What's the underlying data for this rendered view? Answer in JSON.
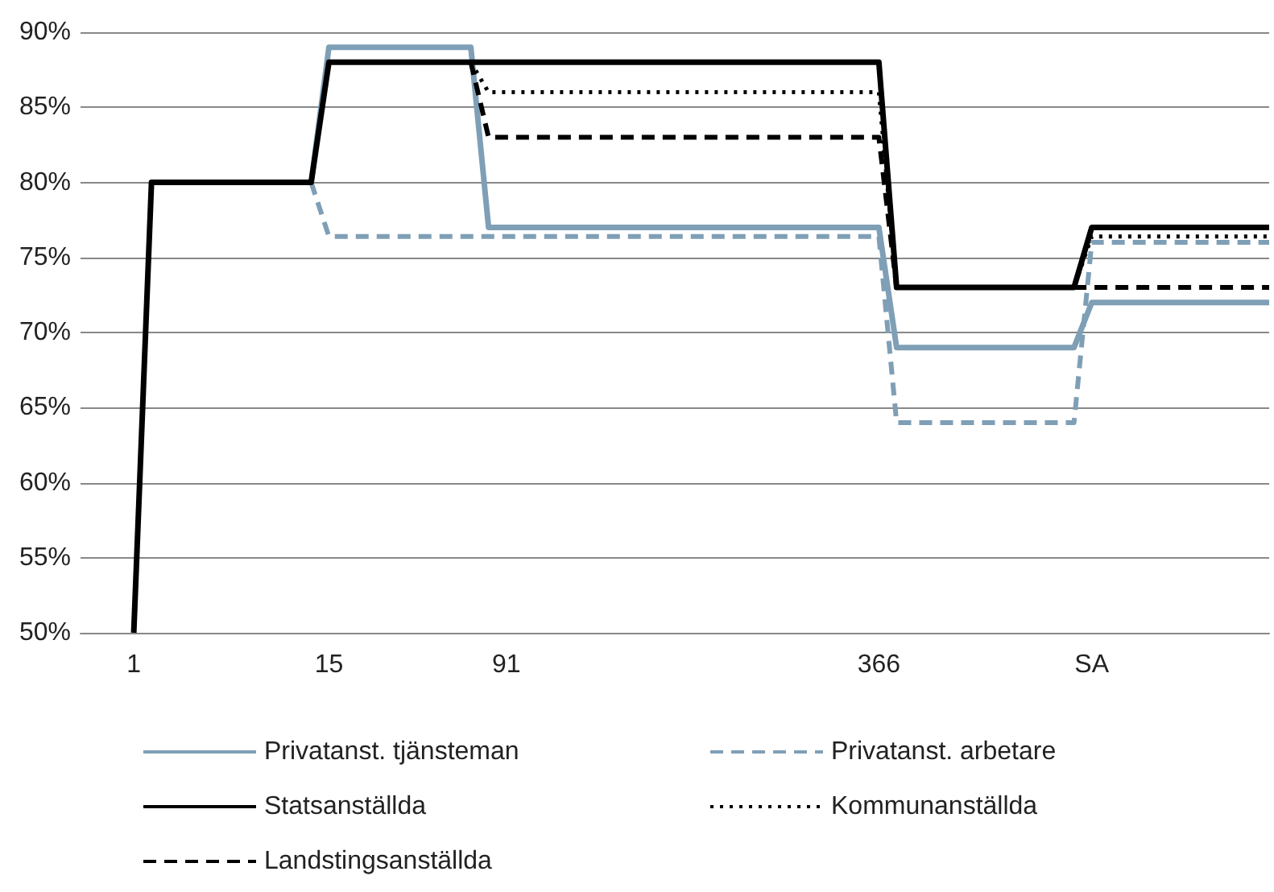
{
  "chart_data": {
    "type": "line",
    "categories": [
      null,
      null,
      null,
      "1",
      null,
      null,
      null,
      null,
      null,
      null,
      null,
      null,
      null,
      null,
      "15",
      null,
      null,
      null,
      null,
      null,
      null,
      null,
      null,
      null,
      "91",
      null,
      null,
      null,
      null,
      null,
      null,
      null,
      null,
      null,
      null,
      null,
      null,
      null,
      null,
      null,
      null,
      null,
      null,
      null,
      null,
      "366",
      null,
      null,
      null,
      null,
      null,
      null,
      null,
      null,
      null,
      null,
      null,
      "SA",
      null,
      null,
      null,
      null,
      null,
      null,
      null,
      null,
      null,
      null
    ],
    "series": [
      {
        "name": "Privatanst. tjänsteman",
        "color": "#7f9fb6",
        "line_style": "solid",
        "values": [
          null,
          null,
          null,
          null,
          null,
          null,
          null,
          null,
          null,
          null,
          null,
          null,
          null,
          80,
          89,
          89,
          89,
          89,
          89,
          89,
          89,
          89,
          89,
          77,
          77,
          77,
          77,
          77,
          77,
          77,
          77,
          77,
          77,
          77,
          77,
          77,
          77,
          77,
          77,
          77,
          77,
          77,
          77,
          77,
          77,
          77,
          69,
          69,
          69,
          69,
          69,
          69,
          69,
          69,
          69,
          69,
          69,
          72,
          72,
          72,
          72,
          72,
          72,
          72,
          72,
          72,
          72,
          72
        ]
      },
      {
        "name": "Privatanst. arbetare",
        "color": "#7f9fb6",
        "line_style": "dashed",
        "values": [
          null,
          null,
          null,
          null,
          null,
          null,
          null,
          null,
          null,
          null,
          null,
          null,
          null,
          80,
          76.4,
          76.4,
          76.4,
          76.4,
          76.4,
          76.4,
          76.4,
          76.4,
          76.4,
          76.4,
          76.4,
          76.4,
          76.4,
          76.4,
          76.4,
          76.4,
          76.4,
          76.4,
          76.4,
          76.4,
          76.4,
          76.4,
          76.4,
          76.4,
          76.4,
          76.4,
          76.4,
          76.4,
          76.4,
          76.4,
          76.4,
          76.4,
          64,
          64,
          64,
          64,
          64,
          64,
          64,
          64,
          64,
          64,
          64,
          76,
          76,
          76,
          76,
          76,
          76,
          76,
          76,
          76,
          76,
          76
        ]
      },
      {
        "name": "Statsanställda",
        "color": "#000000",
        "line_style": "solid",
        "values": [
          null,
          null,
          null,
          50,
          80,
          80,
          80,
          80,
          80,
          80,
          80,
          80,
          80,
          80,
          88,
          88,
          88,
          88,
          88,
          88,
          88,
          88,
          88,
          88,
          88,
          88,
          88,
          88,
          88,
          88,
          88,
          88,
          88,
          88,
          88,
          88,
          88,
          88,
          88,
          88,
          88,
          88,
          88,
          88,
          88,
          88,
          73,
          73,
          73,
          73,
          73,
          73,
          73,
          73,
          73,
          73,
          73,
          77,
          77,
          77,
          77,
          77,
          77,
          77,
          77,
          77,
          77,
          77
        ]
      },
      {
        "name": "Kommunanställda",
        "color": "#000000",
        "line_style": "dotted",
        "values": [
          null,
          null,
          null,
          null,
          null,
          null,
          null,
          null,
          null,
          null,
          null,
          null,
          null,
          null,
          null,
          null,
          null,
          null,
          null,
          null,
          null,
          null,
          88,
          86,
          86,
          86,
          86,
          86,
          86,
          86,
          86,
          86,
          86,
          86,
          86,
          86,
          86,
          86,
          86,
          86,
          86,
          86,
          86,
          86,
          86,
          86,
          73,
          73,
          73,
          73,
          73,
          73,
          73,
          73,
          73,
          73,
          73,
          76.4,
          76.4,
          76.4,
          76.4,
          76.4,
          76.4,
          76.4,
          76.4,
          76.4,
          76.4,
          76.4
        ]
      },
      {
        "name": "Landstingsanställda",
        "color": "#000000",
        "line_style": "dashed",
        "values": [
          null,
          null,
          null,
          null,
          null,
          null,
          null,
          null,
          null,
          null,
          null,
          null,
          null,
          null,
          null,
          null,
          null,
          null,
          null,
          null,
          null,
          null,
          88,
          83,
          83,
          83,
          83,
          83,
          83,
          83,
          83,
          83,
          83,
          83,
          83,
          83,
          83,
          83,
          83,
          83,
          83,
          83,
          83,
          83,
          83,
          83,
          73,
          73,
          73,
          73,
          73,
          73,
          73,
          73,
          73,
          73,
          73,
          73,
          73,
          73,
          73,
          73,
          73,
          73,
          73,
          73,
          73,
          73
        ]
      }
    ],
    "ylim": [
      50,
      90
    ],
    "yticks": [
      {
        "value": 50,
        "label": "50%"
      },
      {
        "value": 55,
        "label": "55%"
      },
      {
        "value": 60,
        "label": "60%"
      },
      {
        "value": 65,
        "label": "65%"
      },
      {
        "value": 70,
        "label": "70%"
      },
      {
        "value": 75,
        "label": "75%"
      },
      {
        "value": 80,
        "label": "80%"
      },
      {
        "value": 85,
        "label": "85%"
      },
      {
        "value": 90,
        "label": "90%"
      }
    ],
    "grid": "y",
    "legend": "bottom",
    "marker": "none"
  }
}
